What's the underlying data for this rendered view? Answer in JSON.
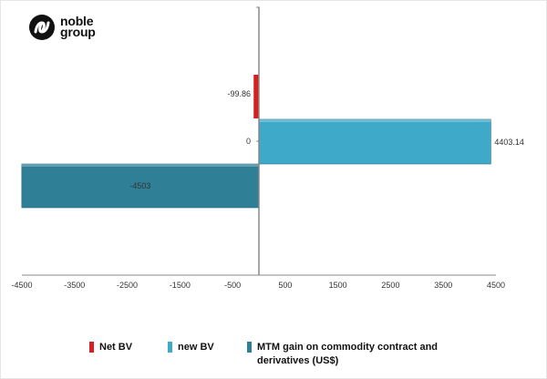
{
  "logo": {
    "line1": "noble",
    "line2": "group"
  },
  "chart_data": {
    "type": "bar",
    "orientation": "horizontal",
    "xlim": [
      -4500,
      4500
    ],
    "x_ticks": [
      -4500,
      -3500,
      -2500,
      -1500,
      -500,
      500,
      1500,
      2500,
      3500,
      4500
    ],
    "x_tick_labels": [
      "-4500",
      "-3500",
      "-2500",
      "-1500",
      "-500",
      "500",
      "1500",
      "2500",
      "3500",
      "4500"
    ],
    "grid": false,
    "legend_position": "bottom",
    "series": [
      {
        "name": "Net BV",
        "value": -99.86,
        "label": "-99.86",
        "color": "#d62020"
      },
      {
        "name": "new BV",
        "value": 4403.14,
        "label": "4403.14",
        "color": "#3fa9c9"
      },
      {
        "name": "MTM gain on commodity contract and derivatives (US$)",
        "value": -4503,
        "label": "-4503",
        "color": "#2f7f97"
      }
    ],
    "zero_label": "0"
  },
  "legend": {
    "items": [
      {
        "label": "Net BV",
        "color": "#d62020"
      },
      {
        "label": "new BV",
        "color": "#3fa9c9"
      },
      {
        "label_line1": "MTM gain on commodity contract and",
        "label_line2": "derivatives (US$)",
        "color": "#2f7f97"
      }
    ]
  }
}
